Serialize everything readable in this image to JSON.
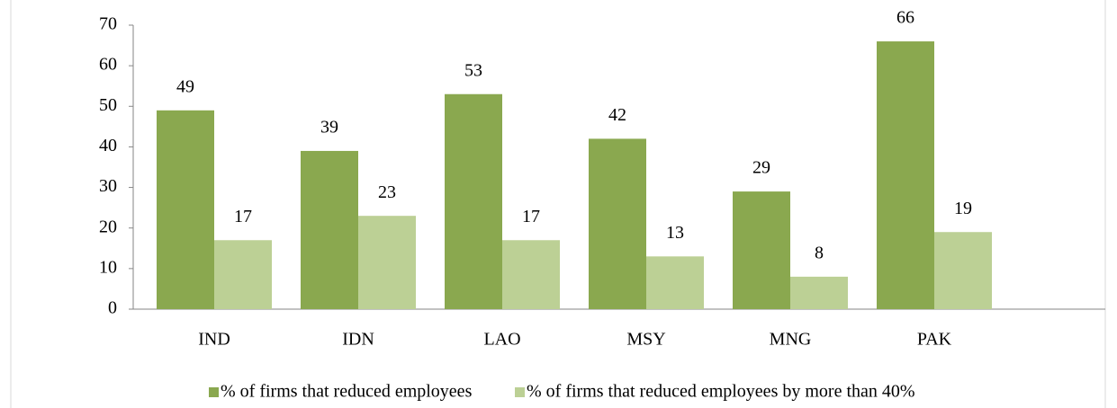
{
  "chart_data": {
    "type": "bar",
    "categories": [
      "IND",
      "IDN",
      "LAO",
      "MSY",
      "MNG",
      "PAK"
    ],
    "series": [
      {
        "name": "% of firms that reduced employees",
        "color": "#8aa84f",
        "values": [
          49,
          39,
          53,
          42,
          29,
          66
        ]
      },
      {
        "name": "% of firms that reduced employees by more than 40%",
        "color": "#bcd095",
        "values": [
          17,
          23,
          17,
          13,
          8,
          19
        ]
      }
    ],
    "ylim": [
      0,
      70
    ],
    "yticks": [
      0,
      10,
      20,
      30,
      40,
      50,
      60,
      70
    ],
    "grid": false,
    "legend": "bottom"
  }
}
